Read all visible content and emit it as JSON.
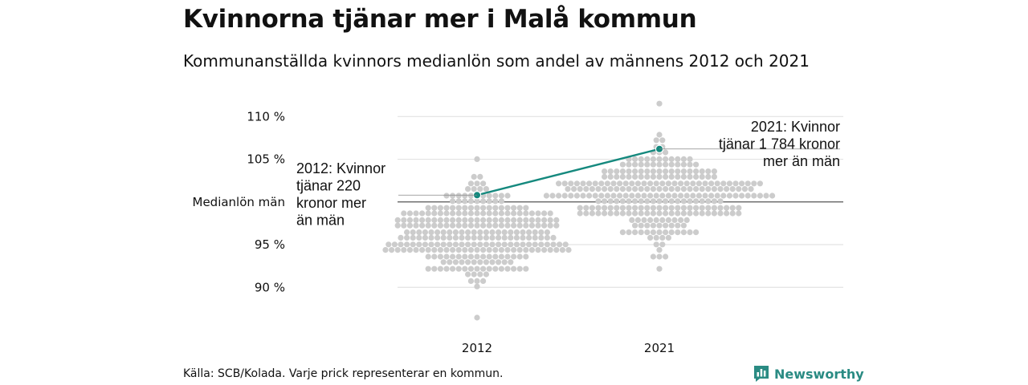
{
  "header": {
    "title": "Kvinnorna tjänar mer i Malå kommun",
    "subtitle": "Kommunanställda kvinnors medianlön som andel av männens 2012 och 2021"
  },
  "footer": {
    "source": "Källa: SCB/Kolada. Varje prick representerar en kommun.",
    "brand": "Newsworthy",
    "brand_icon": "bar-chart-logo-icon"
  },
  "colors": {
    "dots": "#cccccc",
    "highlight": "#15897e",
    "grid": "#e3e3e3",
    "reference": "#555555",
    "brand": "#2a8b83"
  },
  "chart_data": {
    "type": "scatter",
    "subtype": "beeswarm",
    "categories": [
      "2012",
      "2021"
    ],
    "y_ticks": [
      {
        "value": 90,
        "label": "90 %"
      },
      {
        "value": 95,
        "label": "95 %"
      },
      {
        "value": 100,
        "label": "Medianlön män"
      },
      {
        "value": 105,
        "label": "105 %"
      },
      {
        "value": 110,
        "label": "110 %"
      }
    ],
    "ylim": [
      85.8,
      112
    ],
    "reference_line": 100,
    "grid": true,
    "distribution": [
      {
        "category": "2012",
        "count": 290,
        "median": 96.5,
        "spread": 2.6,
        "min": 86.5,
        "max": 105.3
      },
      {
        "category": "2021",
        "count": 290,
        "median": 100.6,
        "spread": 2.7,
        "min": 92.5,
        "max": 111.2
      }
    ],
    "highlight": {
      "name": "Malå",
      "values": [
        {
          "x": "2012",
          "y": 100.8
        },
        {
          "x": "2021",
          "y": 106.2
        }
      ]
    },
    "annotations": [
      {
        "x": "2012",
        "lines": [
          "2012: Kvinnor",
          "tjänar 220",
          "kronor mer",
          "än män"
        ]
      },
      {
        "x": "2021",
        "lines": [
          "2021: Kvinnor",
          "tjänar 1 784 kronor",
          "mer än män"
        ]
      }
    ]
  }
}
